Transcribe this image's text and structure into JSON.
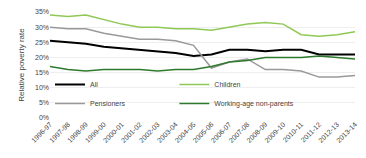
{
  "chart_data": {
    "type": "line",
    "ylabel": "Relative poverty rate",
    "categories": [
      "1996-97",
      "1997-98",
      "1998-99",
      "1999-00",
      "2000-01",
      "2001-02",
      "2002-03",
      "2003-04",
      "2004-05",
      "2005-06",
      "2006-07",
      "2007-08",
      "2008-09",
      "2009-10",
      "2010-11",
      "2011-12",
      "2012-13",
      "2013-14"
    ],
    "series": [
      {
        "name": "All",
        "color": "#000000",
        "values": [
          25.5,
          25.0,
          24.5,
          23.5,
          23.0,
          22.5,
          22.0,
          21.5,
          20.5,
          21.0,
          22.5,
          22.5,
          22.0,
          22.5,
          22.5,
          21.0,
          21.0,
          21.0
        ]
      },
      {
        "name": "Children",
        "color": "#90c855",
        "values": [
          34.0,
          33.5,
          34.0,
          32.5,
          31.0,
          30.0,
          30.0,
          29.5,
          29.5,
          29.0,
          30.0,
          31.0,
          31.5,
          31.0,
          27.5,
          27.0,
          27.5,
          28.5
        ]
      },
      {
        "name": "Pensioners",
        "color": "#999999",
        "values": [
          30.0,
          29.5,
          29.5,
          28.0,
          27.0,
          26.0,
          26.0,
          25.5,
          24.0,
          16.5,
          18.5,
          19.5,
          16.0,
          16.0,
          15.5,
          13.5,
          13.5,
          14.0
        ]
      },
      {
        "name": "Working-age non-parents",
        "color": "#2d7a2d",
        "values": [
          17.0,
          16.0,
          15.5,
          16.0,
          16.0,
          16.0,
          15.5,
          16.0,
          16.0,
          17.0,
          18.5,
          19.0,
          20.0,
          20.0,
          20.0,
          20.5,
          20.0,
          19.5
        ]
      }
    ],
    "ylim": [
      0,
      35
    ],
    "yticks": [
      {
        "value": 0,
        "label": "0%"
      },
      {
        "value": 5,
        "label": "5%"
      },
      {
        "value": 10,
        "label": "10%"
      },
      {
        "value": 15,
        "label": "15%"
      },
      {
        "value": 20,
        "label": "20%"
      },
      {
        "value": 25,
        "label": "25%"
      },
      {
        "value": 30,
        "label": "30%"
      },
      {
        "value": 35,
        "label": "35%"
      }
    ],
    "grid": true,
    "legend": "lower left"
  }
}
